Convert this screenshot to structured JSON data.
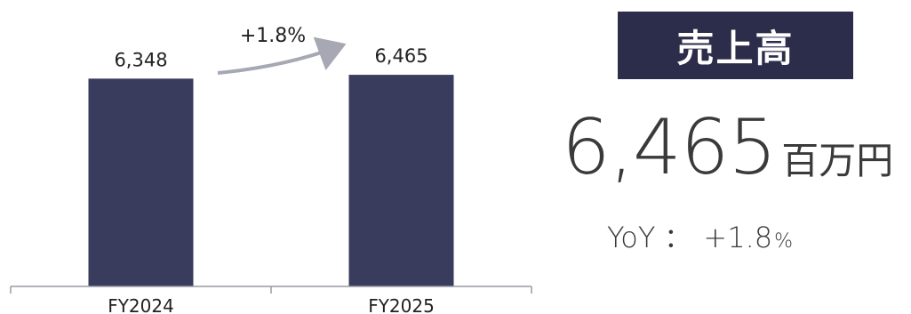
{
  "chart_data": {
    "type": "bar",
    "categories": [
      "FY2024",
      "FY2025"
    ],
    "values": [
      6348,
      6465
    ],
    "value_labels": [
      "6,348",
      "6,465"
    ],
    "growth_annotation": "+1.8%",
    "bar_color": "#3a3c5e",
    "ylim": [
      0,
      7000
    ],
    "grid": false,
    "legend": "none"
  },
  "panel": {
    "title": "売上高",
    "value": "6,465",
    "unit": "百万円",
    "yoy_label": "YoY",
    "yoy_separator": "：",
    "yoy_value": "+1.8",
    "yoy_pct": "%",
    "title_bg": "#2b2d4a"
  }
}
